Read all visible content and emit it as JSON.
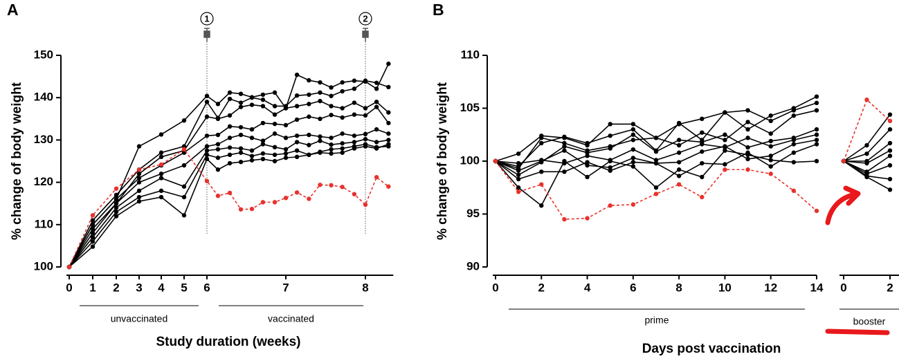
{
  "chart_data": [
    {
      "type": "line",
      "panel_label": "A",
      "x_label": "Study duration (weeks)",
      "y_label": "% change of body weight",
      "x": [
        0,
        1,
        2,
        3,
        4,
        5,
        6,
        6.14,
        6.29,
        6.43,
        6.57,
        6.71,
        6.86,
        7,
        7.14,
        7.29,
        7.43,
        7.57,
        7.71,
        7.86,
        8,
        8.14,
        8.29
      ],
      "xlim": [
        0,
        8.35
      ],
      "xticks": [
        0,
        1,
        2,
        3,
        4,
        5,
        6,
        7,
        8
      ],
      "ylim": [
        100,
        150
      ],
      "yticks": [
        100,
        110,
        120,
        130,
        140,
        150
      ],
      "series": [
        {
          "color": "#000000",
          "values": [
            100,
            110,
            116,
            128.5,
            131.3,
            134.6,
            140.4,
            138.5,
            141.2,
            140.9,
            140.1,
            140.7,
            141.2,
            137.5,
            145.4,
            144.1,
            143.6,
            142.4,
            143.6,
            144.0,
            143.8,
            142.1,
            148.0
          ]
        },
        {
          "color": "#000000",
          "values": [
            100,
            111,
            117,
            123,
            127,
            128.5,
            139.0,
            135.2,
            139.7,
            138.8,
            140.0,
            139.5,
            138.0,
            138.0,
            140.5,
            140.7,
            141.2,
            140.4,
            141.5,
            142.1,
            144.0,
            143.5,
            142.5
          ]
        },
        {
          "color": "#000000",
          "values": [
            100,
            109,
            115,
            122,
            126,
            127.5,
            135.5,
            135.0,
            135.8,
            137.8,
            138.3,
            138.0,
            136.0,
            137.5,
            138.0,
            138.5,
            139.2,
            138.0,
            137.5,
            138.8,
            137.5,
            139.0,
            136.5
          ]
        },
        {
          "color": "#000000",
          "values": [
            100,
            110,
            116,
            121,
            124,
            127,
            131.0,
            131.2,
            133.2,
            133.0,
            132.5,
            134.0,
            133.8,
            133.5,
            134.8,
            135.5,
            135.0,
            135.9,
            135.3,
            136.0,
            135.8,
            137.8,
            134.0
          ]
        },
        {
          "color": "#000000",
          "values": [
            100,
            108,
            115,
            120,
            122,
            124,
            128.5,
            129.0,
            130.5,
            131.2,
            130.5,
            129.8,
            131.5,
            130.5,
            131.0,
            131.2,
            130.8,
            130.5,
            131.5,
            131.0,
            131.4,
            132.5,
            131.5
          ]
        },
        {
          "color": "#000000",
          "values": [
            100,
            107,
            114,
            118,
            121,
            119,
            127.5,
            127.8,
            128.2,
            128.0,
            127.5,
            129.0,
            128.3,
            127.8,
            129.5,
            128.8,
            129.8,
            128.9,
            129.2,
            129.5,
            130.2,
            129.5,
            130.0
          ]
        },
        {
          "color": "#000000",
          "values": [
            100,
            106,
            113,
            116.5,
            118,
            116.5,
            126.5,
            125.8,
            126.5,
            127.0,
            126.2,
            126.8,
            126.5,
            126.8,
            127.5,
            126.5,
            127.2,
            127.8,
            128.0,
            128.5,
            129.0,
            128.3,
            128.5
          ]
        },
        {
          "color": "#000000",
          "values": [
            100,
            104.8,
            112,
            115.5,
            116.5,
            112.2,
            125.5,
            123.0,
            124.5,
            124.8,
            125.2,
            125.5,
            125.0,
            125.8,
            126.0,
            126.5,
            127.0,
            126.8,
            127.0,
            128.0,
            128.5,
            128.0,
            129.0
          ]
        },
        {
          "color": "#e8322c",
          "line_style": "dashed",
          "values": [
            100,
            112.2,
            118.5,
            123,
            124.2,
            127.8,
            120.3,
            116.8,
            117.5,
            113.6,
            113.7,
            115.3,
            115.3,
            116.3,
            117.6,
            116.1,
            119.4,
            119.3,
            118.9,
            117.2,
            114.7,
            121.2,
            119.0
          ]
        }
      ],
      "markers": [
        {
          "x": 6,
          "label": "1"
        },
        {
          "x": 8,
          "label": "2"
        }
      ],
      "spans": [
        "unvaccinated",
        "vaccinated"
      ]
    },
    {
      "type": "line",
      "panel_label": "B",
      "x_label": "Days post vaccination",
      "y_label": "% change of body weight",
      "x": [
        0,
        1,
        2,
        3,
        4,
        5,
        6,
        7,
        8,
        9,
        10,
        11,
        12,
        13,
        14
      ],
      "xlim": [
        0,
        14
      ],
      "xticks": [
        0,
        2,
        4,
        6,
        8,
        10,
        12,
        14
      ],
      "ylim": [
        90,
        110
      ],
      "yticks": [
        90,
        95,
        100,
        105,
        110
      ],
      "series": [
        {
          "color": "#000000",
          "values": [
            100,
            100.7,
            102.4,
            102.2,
            101.5,
            103.5,
            103.5,
            102.2,
            103.5,
            104.0,
            104.6,
            103.0,
            104.3,
            105.0,
            106.1
          ]
        },
        {
          "color": "#000000",
          "values": [
            100,
            99.5,
            101.7,
            102.3,
            101.7,
            102.4,
            103.0,
            101.0,
            103.6,
            102.0,
            104.6,
            104.8,
            103.8,
            104.8,
            105.5
          ]
        },
        {
          "color": "#000000",
          "values": [
            100,
            99.3,
            102.2,
            101.7,
            101.0,
            101.4,
            102.0,
            102.2,
            101.5,
            102.7,
            102.0,
            103.7,
            102.6,
            104.3,
            104.8
          ]
        },
        {
          "color": "#000000",
          "values": [
            100,
            98.7,
            99.9,
            101.4,
            100.8,
            101.2,
            102.5,
            100.9,
            102.0,
            101.8,
            102.5,
            101.3,
            101.9,
            102.2,
            103.0
          ]
        },
        {
          "color": "#000000",
          "values": [
            100,
            99.8,
            100.1,
            99.8,
            100.5,
            100.1,
            101.1,
            100.1,
            100.8,
            101.6,
            101.3,
            102.2,
            101.4,
            102.0,
            102.5
          ]
        },
        {
          "color": "#000000",
          "values": [
            100,
            99.1,
            100.0,
            101.0,
            99.6,
            99.4,
            100.3,
            99.8,
            99.9,
            100.9,
            101.4,
            100.2,
            100.5,
            101.6,
            102.0
          ]
        },
        {
          "color": "#000000",
          "values": [
            100,
            98.3,
            99.0,
            99.0,
            99.9,
            99.1,
            99.9,
            99.8,
            98.6,
            99.8,
            99.7,
            100.8,
            99.5,
            100.8,
            101.6
          ]
        },
        {
          "color": "#000000",
          "values": [
            100,
            97.5,
            95.8,
            100.0,
            98.5,
            100.0,
            99.5,
            97.5,
            99.2,
            98.5,
            101.0,
            100.6,
            100.1,
            99.9,
            100.0
          ]
        },
        {
          "color": "#e8322c",
          "line_style": "dashed",
          "values": [
            100,
            97.1,
            97.8,
            94.5,
            94.6,
            95.8,
            95.9,
            96.9,
            97.8,
            96.6,
            99.2,
            99.2,
            98.8,
            97.2,
            95.3
          ]
        }
      ],
      "spans": [
        "prime"
      ]
    },
    {
      "type": "line",
      "x": [
        0,
        1,
        2
      ],
      "xlim": [
        0,
        2
      ],
      "xticks": [
        0,
        2
      ],
      "ylim": [
        90,
        110
      ],
      "series": [
        {
          "color": "#000000",
          "values": [
            100,
            101.5,
            104.4
          ]
        },
        {
          "color": "#000000",
          "values": [
            100,
            100.7,
            103.0
          ]
        },
        {
          "color": "#000000",
          "values": [
            100,
            100.0,
            101.7
          ]
        },
        {
          "color": "#000000",
          "values": [
            100,
            99.8,
            101.0
          ]
        },
        {
          "color": "#000000",
          "values": [
            100,
            99.0,
            100.5
          ]
        },
        {
          "color": "#000000",
          "values": [
            100,
            98.8,
            99.6
          ]
        },
        {
          "color": "#000000",
          "values": [
            100,
            98.6,
            98.3
          ]
        },
        {
          "color": "#000000",
          "values": [
            100,
            98.5,
            97.3
          ]
        },
        {
          "color": "#e8322c",
          "line_style": "dashed",
          "values": [
            100,
            105.8,
            103.8
          ]
        }
      ],
      "spans": [
        "booster"
      ]
    }
  ]
}
